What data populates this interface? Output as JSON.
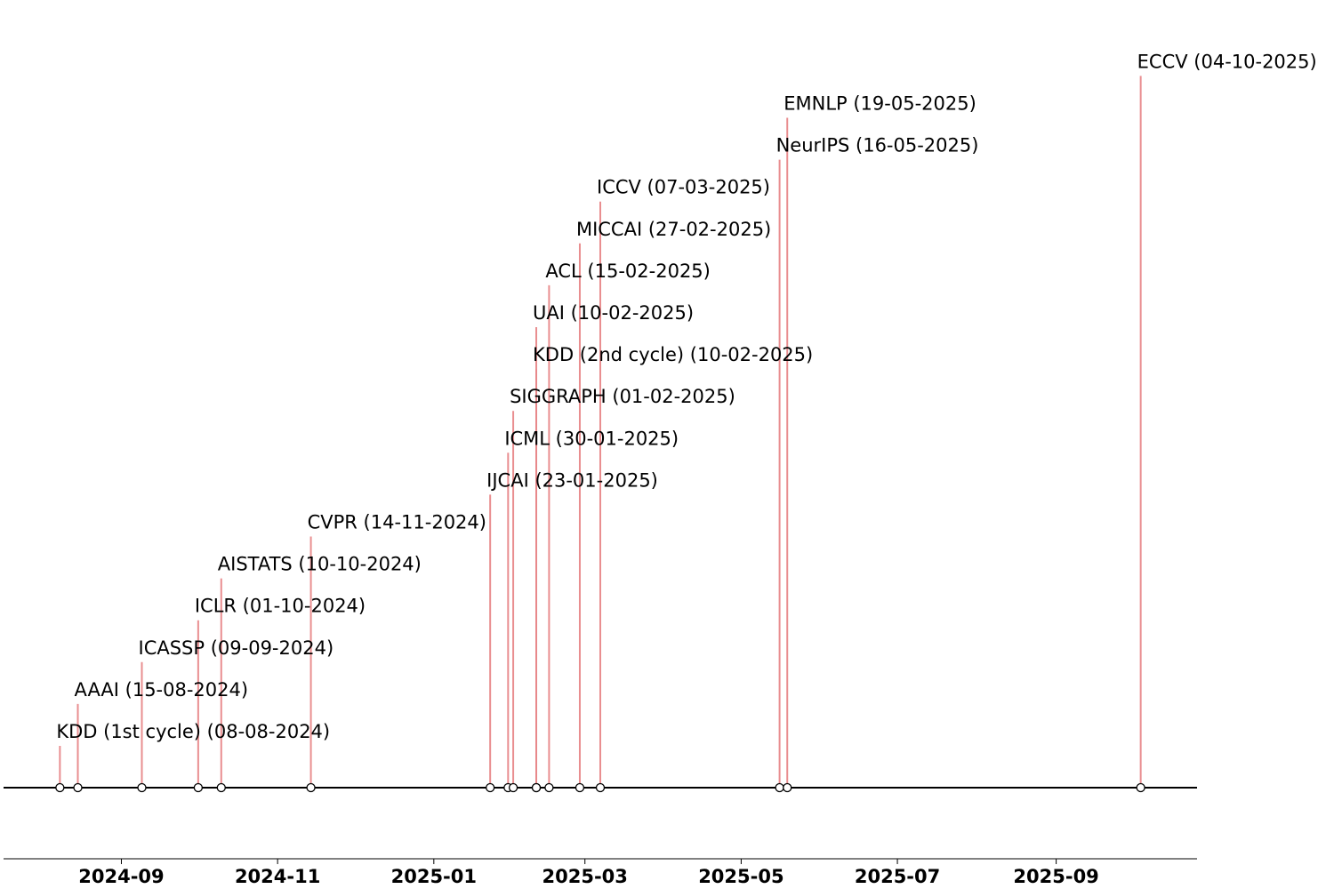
{
  "chart_data": {
    "type": "timeline",
    "x_axis": {
      "type": "date",
      "range": [
        "2024-07-17",
        "2025-10-26"
      ],
      "ticks": [
        "2024-09",
        "2024-11",
        "2025-01",
        "2025-03",
        "2025-05",
        "2025-07",
        "2025-09"
      ]
    },
    "grid": false,
    "line_color": "#e8888a",
    "baseline_color": "#000000",
    "events": [
      {
        "label": "KDD (1st cycle) (08-08-2024)",
        "date": "2024-08-08",
        "level": 1
      },
      {
        "label": "AAAI (15-08-2024)",
        "date": "2024-08-15",
        "level": 2
      },
      {
        "label": "ICASSP (09-09-2024)",
        "date": "2024-09-09",
        "level": 3
      },
      {
        "label": "ICLR (01-10-2024)",
        "date": "2024-10-01",
        "level": 4
      },
      {
        "label": "AISTATS (10-10-2024)",
        "date": "2024-10-10",
        "level": 5
      },
      {
        "label": "CVPR (14-11-2024)",
        "date": "2024-11-14",
        "level": 6
      },
      {
        "label": "IJCAI (23-01-2025)",
        "date": "2025-01-23",
        "level": 7
      },
      {
        "label": "ICML (30-01-2025)",
        "date": "2025-01-30",
        "level": 8
      },
      {
        "label": "SIGGRAPH (01-02-2025)",
        "date": "2025-02-01",
        "level": 9
      },
      {
        "label": "KDD (2nd cycle) (10-02-2025)",
        "date": "2025-02-10",
        "level": 10
      },
      {
        "label": "UAI (10-02-2025)",
        "date": "2025-02-10",
        "level": 11
      },
      {
        "label": "ACL (15-02-2025)",
        "date": "2025-02-15",
        "level": 12
      },
      {
        "label": "MICCAI (27-02-2025)",
        "date": "2025-02-27",
        "level": 13
      },
      {
        "label": "ICCV (07-03-2025)",
        "date": "2025-03-07",
        "level": 14
      },
      {
        "label": "NeurIPS (16-05-2025)",
        "date": "2025-05-16",
        "level": 15
      },
      {
        "label": "EMNLP (19-05-2025)",
        "date": "2025-05-19",
        "level": 16
      },
      {
        "label": "ECCV (04-10-2025)",
        "date": "2025-10-04",
        "level": 17
      }
    ]
  }
}
